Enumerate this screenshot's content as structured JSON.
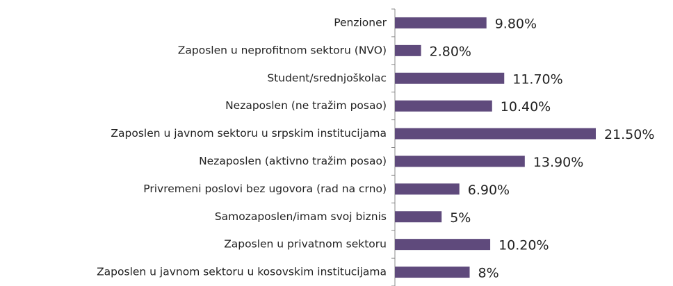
{
  "chart_data": {
    "type": "bar",
    "orientation": "horizontal",
    "categories": [
      "Penzioner",
      "Zaposlen u neprofitnom sektoru (NVO)",
      "Student/srednjoškolac",
      "Nezaposlen (ne tražim posao)",
      "Zaposlen u javnom sektoru u srpskim institucijama",
      "Nezaposlen (aktivno tražim posao)",
      "Privremeni poslovi bez ugovora (rad na crno)",
      "Samozaposlen/imam svoj biznis",
      "Zaposlen u privatnom sektoru",
      "Zaposlen u javnom sektoru u kosovskim institucijama"
    ],
    "values": [
      9.8,
      2.8,
      11.7,
      10.4,
      21.5,
      13.9,
      6.9,
      5,
      10.2,
      8
    ],
    "value_labels": [
      "9.80%",
      "2.80%",
      "11.70%",
      "10.40%",
      "21.50%",
      "13.90%",
      "6.90%",
      "5%",
      "10.20%",
      "8%"
    ],
    "color": "#5f4a7c",
    "xlim": [
      0,
      25
    ]
  }
}
